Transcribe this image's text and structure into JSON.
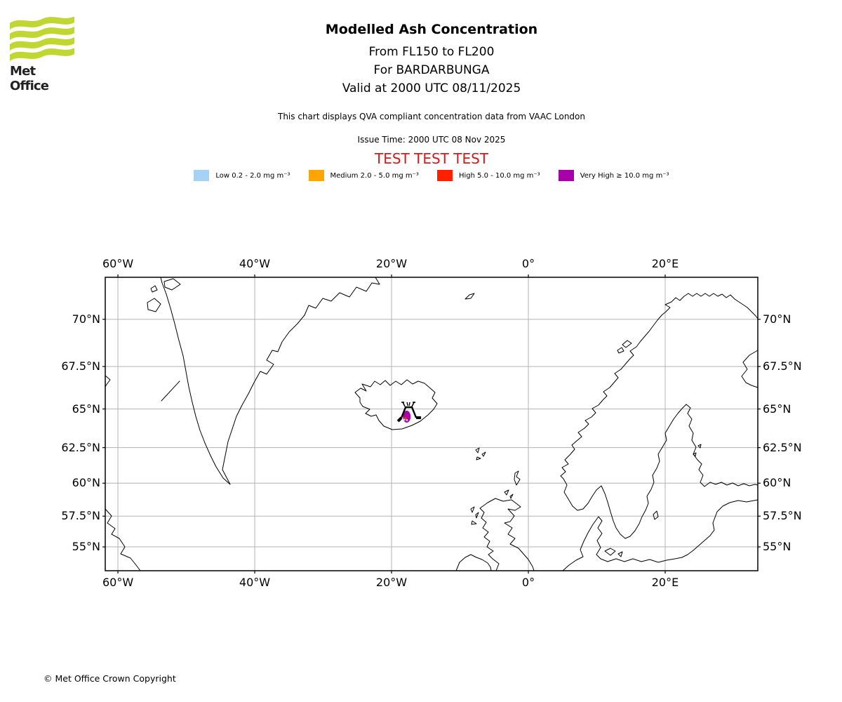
{
  "header": {
    "logo": {
      "brand": "Met Office",
      "green": "#BFD730",
      "text_color": "#222222"
    },
    "title": "Modelled Ash Concentration",
    "subtitle1": "From FL150 to FL200",
    "subtitle2": "For BARDARBUNGA",
    "subtitle3": "Valid at 2000 UTC 08/11/2025",
    "note": "This chart displays QVA compliant concentration data from VAAC London",
    "issue_time": "Issue Time: 2000 UTC 08 Nov 2025",
    "test_banner": {
      "text": "TEST TEST TEST",
      "color": "#D31A1A"
    }
  },
  "legend": {
    "items": [
      {
        "level": "low",
        "label": "Low 0.2 - 2.0 mg m⁻³",
        "color": "#A6D2F5"
      },
      {
        "level": "medium",
        "label": "Medium 2.0 - 5.0 mg m⁻³",
        "color": "#FFA500"
      },
      {
        "level": "high",
        "label": "High 5.0 - 10.0 mg m⁻³",
        "color": "#FF2000"
      },
      {
        "level": "very_high",
        "label": "Very High ≥ 10.0 mg m⁻³",
        "color": "#A800A8"
      }
    ]
  },
  "chart_data": {
    "type": "map",
    "projection": "mercator",
    "lon_range": [
      -61.85,
      33.54
    ],
    "lat_range": [
      52.95,
      72.0
    ],
    "grid": true,
    "grid_color": "#b3b3b3",
    "border_color": "#000000",
    "x_ticks": [
      {
        "label": "60°W",
        "lon": -60
      },
      {
        "label": "40°W",
        "lon": -40
      },
      {
        "label": "20°W",
        "lon": -20
      },
      {
        "label": "0°",
        "lon": 0
      },
      {
        "label": "20°E",
        "lon": 20
      }
    ],
    "y_ticks": [
      {
        "label": "70°N",
        "lat": 70
      },
      {
        "label": "67.5°N",
        "lat": 67.5
      },
      {
        "label": "65°N",
        "lat": 65
      },
      {
        "label": "62.5°N",
        "lat": 62.5
      },
      {
        "label": "60°N",
        "lat": 60
      },
      {
        "label": "57.5°N",
        "lat": 57.5
      },
      {
        "label": "55°N",
        "lat": 55
      }
    ],
    "volcano": {
      "name": "BARDARBUNGA",
      "lon": -17.53,
      "lat": 64.63
    },
    "ash_cells": [
      {
        "level": "very_high",
        "lon": -17.78,
        "lat": 64.52,
        "rx": 5.5,
        "ry": 8.5
      },
      {
        "level": "high",
        "lon": -17.95,
        "lat": 64.42,
        "rx": 1.8,
        "ry": 2.2
      },
      {
        "level": "low",
        "lon": -18.15,
        "lat": 64.33,
        "rx": 1.5,
        "ry": 1.5
      },
      {
        "level": "low",
        "lon": -17.75,
        "lat": 64.3,
        "rx": 1.5,
        "ry": 1.5
      }
    ],
    "coastlines": [
      "M385,0 L391,10 L380,8 L372,20 L358,14 L348,28 L334,22 L322,34 L310,30 L300,44 L290,40 L284,54 L274,66 L262,78 L252,92 L246,106 L238,104 L230,118 L240,124 L230,138 L221,134 L212,150 L204,166 L195,182 L187,198 L181,216 L175,234 L171,254 L167,274 L178,295 L168,286 L158,270 L150,254 L142,236 L135,218 L129,198 L124,178 L119,156 L115,134 L111,112 L105,90 L99,66 L93,44 L87,24 L81,8 L79,0",
      "M60,36 L70,30 L79,38 L72,49 L61,46 Z",
      "M84,6 L97,2 L107,10 L95,18 L85,14 Z",
      "M65,16 L71,12 L74,18 L67,21 Z",
      "M80,176 L106,148",
      "M0,330 L9,340 L3,350 L14,358 L9,366 L20,372 L28,384 L22,394 L36,400 L44,410 L50,418",
      "M0,140 L7,146 L1,154 L0,156",
      "M363,172 L356,164 L364,158 L372,162 L366,152 L378,156 L384,148 L392,153 L399,147 L406,154 L414,148 L422,153 L430,146 L438,152 L446,148 L455,151 L462,157 L470,164 L466,172 L473,180 L468,188 L460,196 L449,205 L437,211 L423,216 L409,217 L397,212 L390,204 L386,196 L379,198 L371,194 L377,188 L367,184 L363,178 Z",
      "M513,31 L519,25 L526,23 L521,30 Z",
      "M528,246 L533,243 L531,250 Z M537,252 L542,249 L539,255 Z M530,256 L535,258 L529,260 Z",
      "M584,279 L589,276 L586,284 L591,288 L586,296 L583,288 Z",
      "M569,306 L575,303 L572,310 Z M577,312 L581,309 L578,315 Z",
      "M521,330 L526,327 L523,335 Z M528,338 L532,335 L529,343 Z M523,347 L529,351 L522,352 Z",
      "M545,321 L556,315 L567,319 L579,317 L592,327 L584,332 L574,330 L583,340 L577,348 L569,350 L580,357 L574,366 L584,372 L577,380 L589,386 L596,394 L603,402 L609,412 L611,418 L557,418 L561,408 L552,401 L546,395 L553,390 L544,384 L548,376 L540,370 L546,363 L538,357 L543,349 L536,343 L540,335 L534,329 Z",
      "M500,418 L505,406 L513,399 L521,395 L529,399 L537,402 L545,407 L549,413 L550,418 Z",
      "M673,332 L666,326 L660,316 L654,306 L658,296 L653,287 L649,283 L656,277 L651,271 L660,266 L655,260 L663,252 L669,245 L665,239 L672,233 L679,227 L674,221 L683,215 L689,209 L684,204 L693,199 L699,193 L694,187 L703,182 L709,175 L715,169 L710,163 L719,157 L725,150 L731,143 L726,137 L735,131 L741,124 L747,117 L753,111 L748,105 L757,99 L763,91 L769,84 L775,77 L781,69 L787,61 L793,54 L799,49 L805,43 L798,39 L807,35 L813,29 L819,33 L825,27 L831,23 L837,27 L843,23 L849,27 L855,23 L861,27 L867,23 L873,27 L879,24 L885,29 L891,25 L897,31 L903,35 L909,39 L915,43 L921,49 L927,55 L930,59",
      "M737,96 L744,90 L750,94 L742,100 Z M730,104 L736,100 L739,105 L732,108 Z",
      "M930,104 L918,111 L909,121 L915,131 L907,141 L913,150 L921,154 L930,157",
      "M673,332 L681,330 L688,322 L694,312 L700,303 L707,297 L712,308 L716,320 L720,334 L724,347 L728,357 L734,366 L741,372 L748,369 L755,361 L761,351 L765,341 L770,332 L774,322 L772,312 L778,302 L782,292 L780,282 L786,272 L790,262 L788,252 L794,242 L800,232 L798,222 L804,212 L810,202 L816,194 L822,187 L828,181 L834,186 L830,194 L836,202 L832,212 L838,222 L836,232 L842,242 L838,252 L844,260 L850,266 L846,274 L852,282 L848,292 L854,298 L862,292 L870,295 L878,292 L886,296 L894,293 L902,297 L910,294 L918,297 L926,295 L930,296",
      "M652,418 L661,410 L671,403 L681,398 L677,388 L682,376 L688,364 L695,352 L703,341 L708,347 L702,357 L708,365 L701,375 L706,385 L700,395 L706,401 L716,405 L728,401 L740,405 L752,401 L764,405 L776,402 L788,406 L800,403 L812,401 L822,399 L830,395 L838,389 L846,382 L854,375 L862,368 L868,360 L866,350 L872,334 L880,326 L890,321 L902,318 L914,320 L930,317",
      "M712,390 L720,386 L727,390 L720,396 Z M731,394 L737,391 L735,398 Z",
      "M781,338 L786,333 L788,341 L783,345 Z",
      "M845,240 L849,238 L848,243 Z M838,252 L842,250 L841,255 Z"
    ]
  },
  "footer": {
    "copyright": "© Met Office Crown Copyright"
  }
}
